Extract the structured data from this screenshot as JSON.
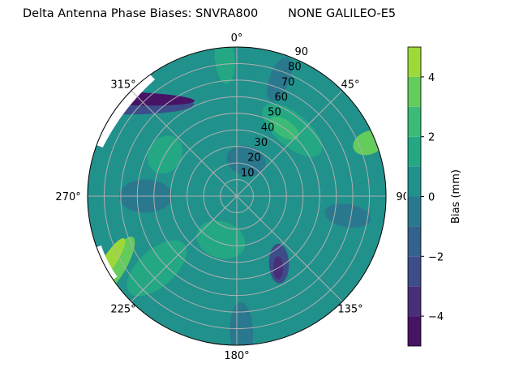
{
  "chart_data": {
    "type": "heatmap",
    "subtype": "polar-filled-contour",
    "title": "Delta Antenna Phase Biases: SNVRA800        NONE GALILEO-E5",
    "angle_tick_labels": [
      "0°",
      "45°",
      "90°",
      "135°",
      "180°",
      "225°",
      "270°",
      "315°"
    ],
    "angle_ticks": [
      0,
      45,
      90,
      135,
      180,
      225,
      270,
      315
    ],
    "angle_direction": "clockwise",
    "angle_zero": "top",
    "radial_ticks": [
      10,
      20,
      30,
      40,
      50,
      60,
      70,
      80,
      90
    ],
    "radial_tick_labels": [
      "10",
      "20",
      "30",
      "40",
      "50",
      "60",
      "70",
      "80",
      "90"
    ],
    "rlim": [
      0,
      90
    ],
    "grid": true,
    "colormap": "viridis",
    "levels": [
      -5,
      -4,
      -3,
      -2,
      -1,
      0,
      1,
      2,
      3,
      4,
      5
    ],
    "level_colors": [
      "#471365",
      "#482f7a",
      "#3d4d8a",
      "#33638d",
      "#2a788e",
      "#21918c",
      "#24a884",
      "#3bbb75",
      "#64cb5d",
      "#9ed93a",
      "#e2e418"
    ],
    "colorbar": {
      "label": "Bias (mm)",
      "ticks": [
        4,
        2,
        0,
        -2,
        -4
      ],
      "tick_labels": [
        "4",
        "2",
        "0",
        "−2",
        "−4"
      ],
      "range": [
        -5,
        5
      ]
    },
    "background_level_bias": 0.5,
    "features": [
      {
        "azimuth": 40,
        "radius": 52,
        "bias": 1.5
      },
      {
        "azimuth": 35,
        "radius": 50,
        "bias": 2.5
      },
      {
        "azimuth": 15,
        "radius": 22,
        "bias": -0.5
      },
      {
        "azimuth": 20,
        "radius": 75,
        "bias": -0.5
      },
      {
        "azimuth": 355,
        "radius": 84,
        "bias": 1.5
      },
      {
        "azimuth": 68,
        "radius": 86,
        "bias": 3.5
      },
      {
        "azimuth": 100,
        "radius": 68,
        "bias": -0.5
      },
      {
        "azimuth": 148,
        "radius": 48,
        "bias": -2.5
      },
      {
        "azimuth": 150,
        "radius": 50,
        "bias": -3.5
      },
      {
        "azimuth": 178,
        "radius": 82,
        "bias": -0.5
      },
      {
        "azimuth": 200,
        "radius": 28,
        "bias": 1.5
      },
      {
        "azimuth": 228,
        "radius": 65,
        "bias": 1.5
      },
      {
        "azimuth": 240,
        "radius": 84,
        "bias": 3.5
      },
      {
        "azimuth": 243,
        "radius": 86,
        "bias": 4.5
      },
      {
        "azimuth": 270,
        "radius": 55,
        "bias": -0.5
      },
      {
        "azimuth": 300,
        "radius": 50,
        "bias": 1.5
      },
      {
        "azimuth": 310,
        "radius": 86,
        "bias": -2.5
      },
      {
        "azimuth": 312,
        "radius": 88,
        "bias": -4.5
      }
    ],
    "no_data_regions": [
      {
        "azimuth_range": [
          290,
          325
        ],
        "radius_min": 86
      },
      {
        "azimuth_range": [
          236,
          250
        ],
        "radius_min": 87
      }
    ]
  }
}
